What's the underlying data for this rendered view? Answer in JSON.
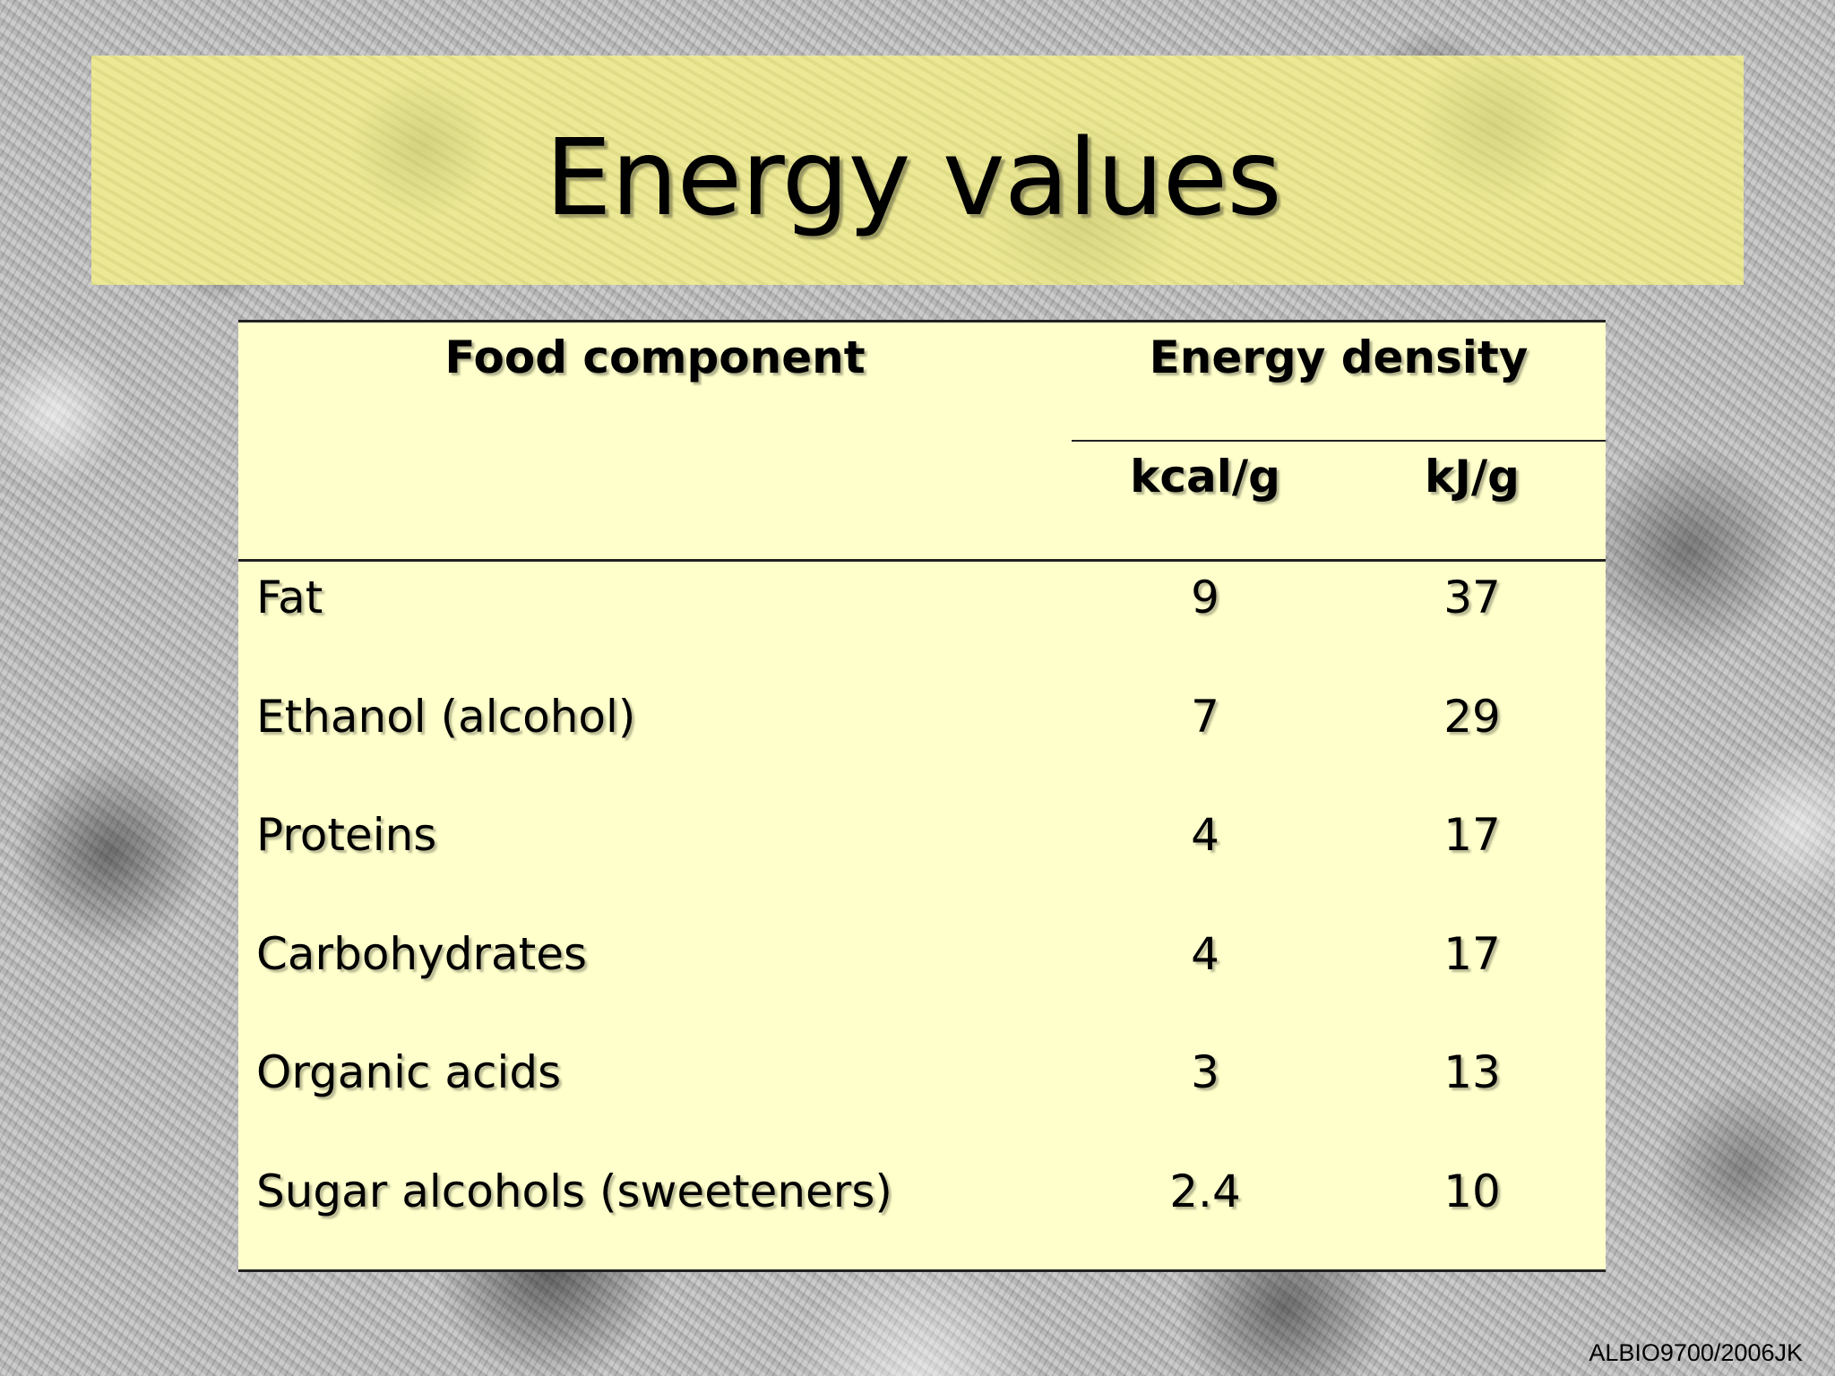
{
  "slide": {
    "title": "Energy values",
    "footer": "ALBIO9700/2006JK"
  },
  "table": {
    "header_food": "Food component",
    "header_energy": "Energy density",
    "unit_kcal": "kcal/g",
    "unit_kj": "kJ/g",
    "rows": [
      {
        "name": "Fat",
        "kcal": "9",
        "kj": "37"
      },
      {
        "name": "Ethanol (alcohol)",
        "kcal": "7",
        "kj": "29"
      },
      {
        "name": "Proteins",
        "kcal": "4",
        "kj": "17"
      },
      {
        "name": "Carbohydrates",
        "kcal": "4",
        "kj": "17"
      },
      {
        "name": "Organic acids",
        "kcal": "3",
        "kj": "13"
      },
      {
        "name": "Sugar alcohols (sweeteners)",
        "kcal": "2.4",
        "kj": "10"
      }
    ]
  },
  "colors": {
    "title_band": "#e9e58e",
    "table_background": "#ffffcc",
    "rule": "#222222"
  }
}
